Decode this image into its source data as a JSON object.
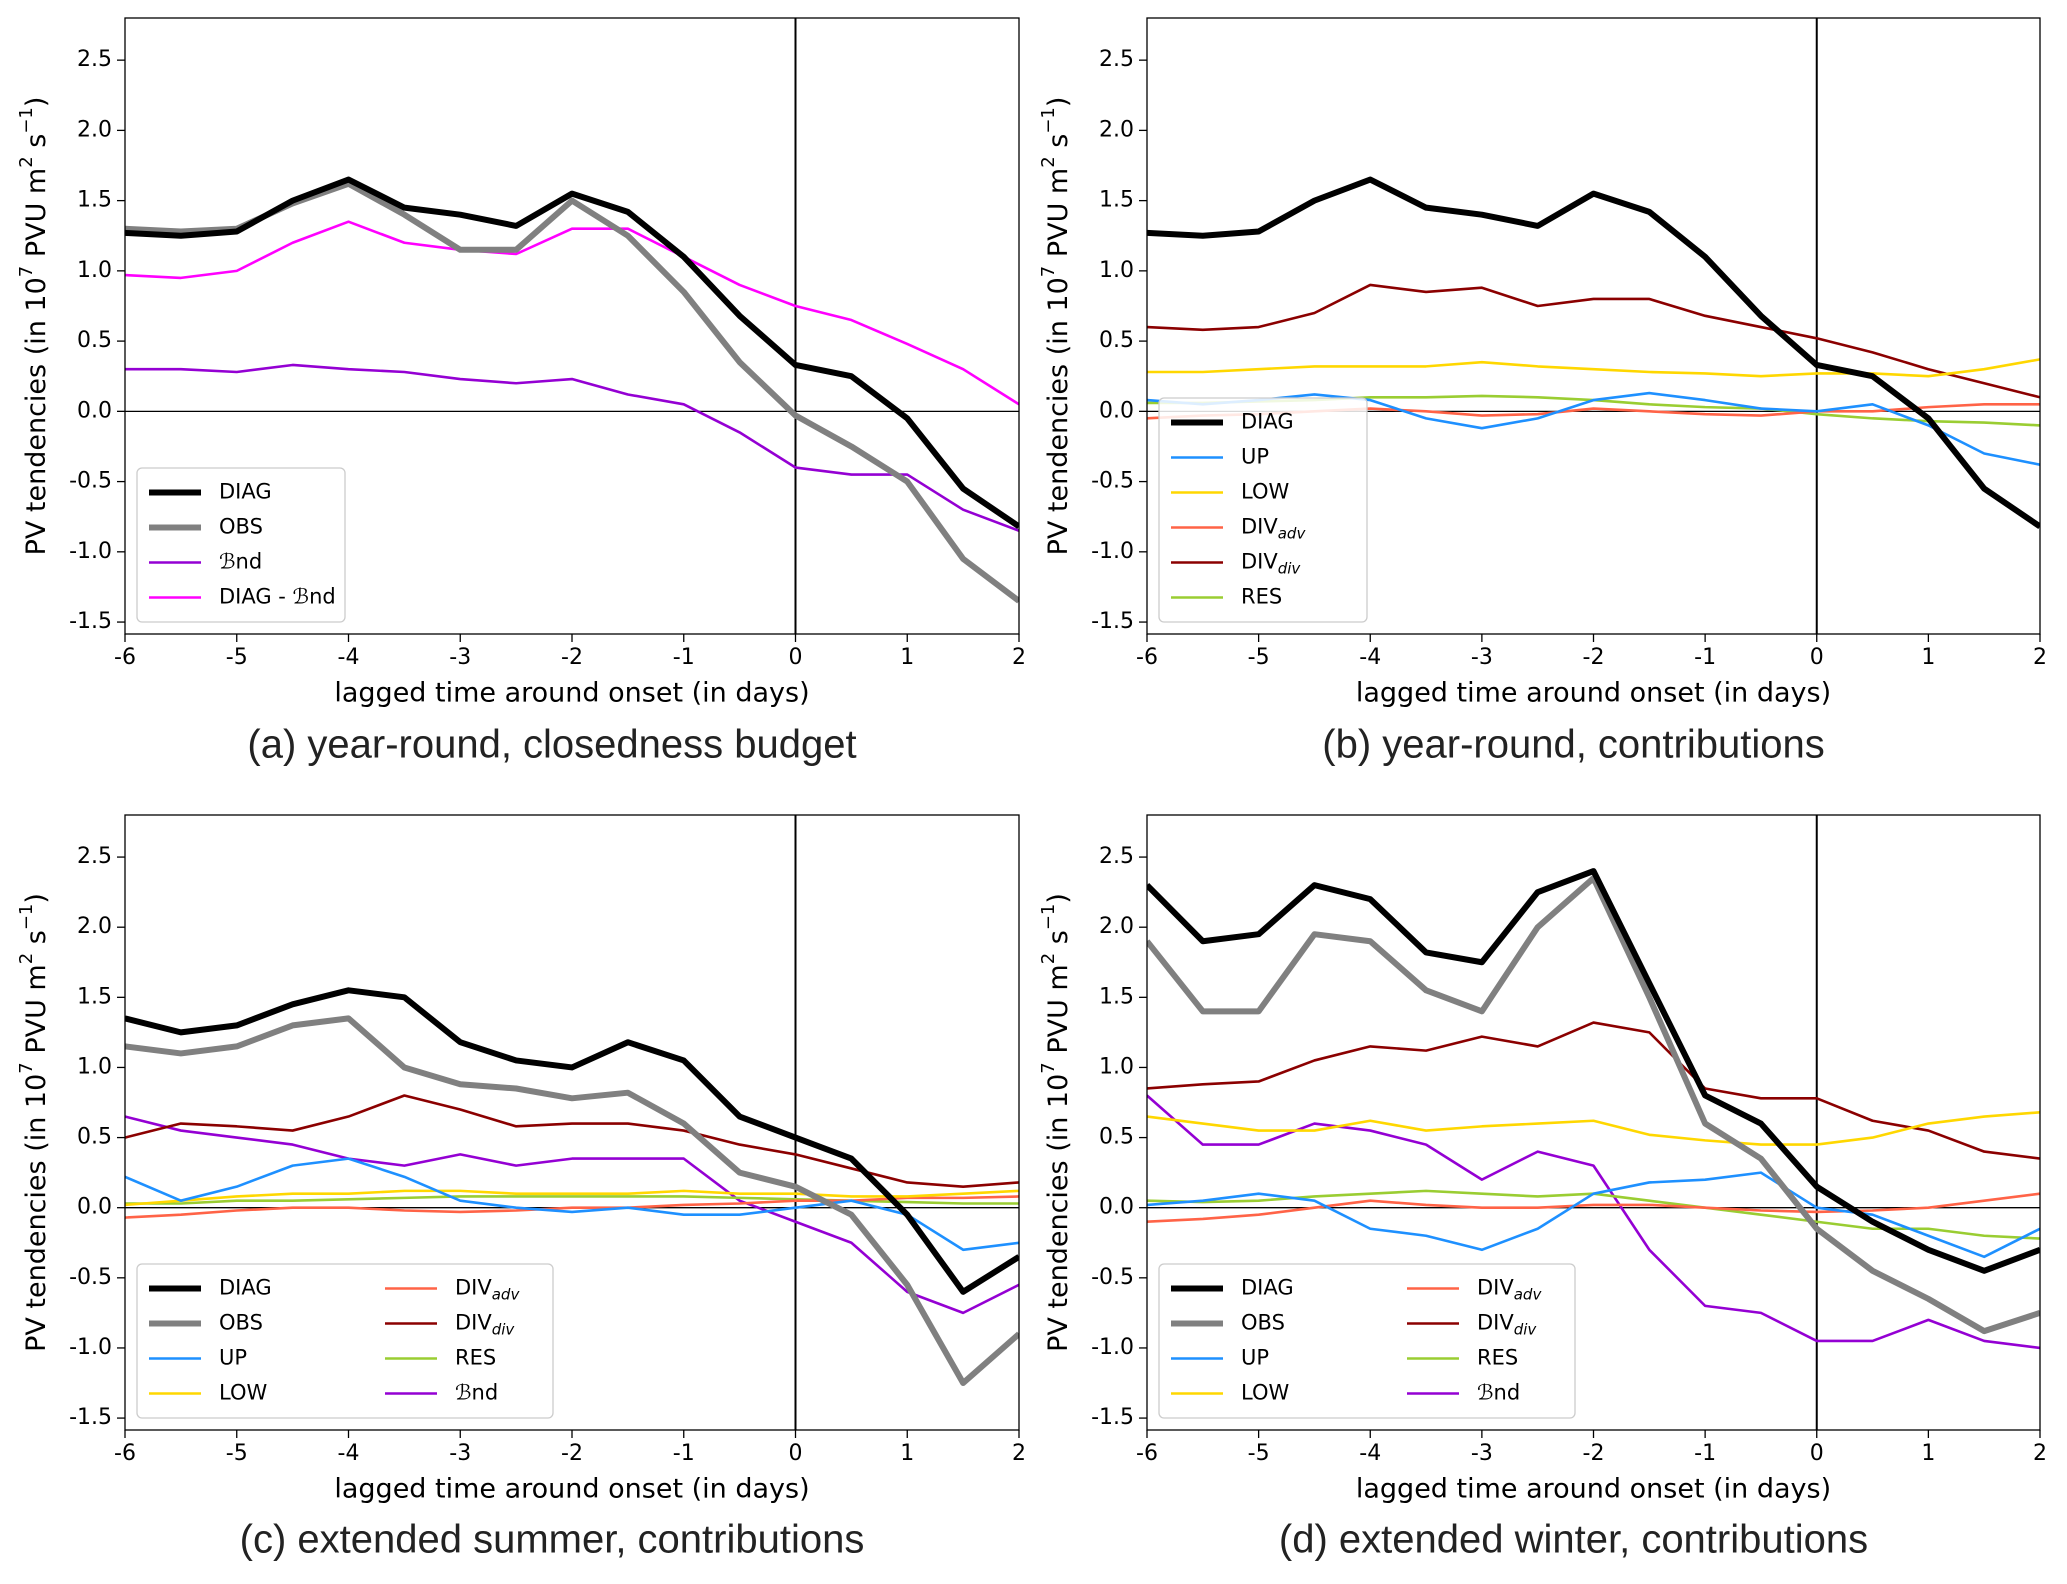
{
  "chart_data": [
    {
      "type": "line",
      "title": "(a) year-round, closedness budget",
      "xlabel": "lagged time around onset (in days)",
      "ylabel": [
        {
          "text": "PV tendencies (in 10"
        },
        {
          "text": "7",
          "sup": true
        },
        {
          "text": " PVU m"
        },
        {
          "text": "2",
          "sup": true
        },
        {
          "text": " s"
        },
        {
          "text": "−1",
          "sup": true
        },
        {
          "text": ")"
        }
      ],
      "xlim": [
        -6,
        2
      ],
      "ylim": [
        -1.585,
        2.8
      ],
      "xticks": [
        -6,
        -5,
        -4,
        -3,
        -2,
        -1,
        0,
        1,
        2
      ],
      "yticks": [
        -1.5,
        {
          "value": -1,
          "label": "-1.0"
        },
        -0.5,
        {
          "value": 0,
          "label": "0.0"
        },
        0.5,
        {
          "value": 1,
          "label": "1.0"
        },
        1.5,
        {
          "value": 2,
          "label": "2.0"
        },
        2.5
      ],
      "reference_lines": {
        "x": 0,
        "y": 0
      },
      "legend": {
        "loc": "lower left",
        "ncol": 1
      },
      "x": [
        -6,
        -5.5,
        -5,
        -4.5,
        -4,
        -3.5,
        -3,
        -2.5,
        -2,
        -1.5,
        -1,
        -0.5,
        0,
        0.5,
        1,
        1.5,
        2
      ],
      "series": [
        {
          "name": "DIAG",
          "color": "#000000",
          "linewidth": 6,
          "values": [
            1.27,
            1.25,
            1.28,
            1.5,
            1.65,
            1.45,
            1.4,
            1.32,
            1.55,
            1.42,
            1.1,
            0.68,
            0.33,
            0.25,
            -0.05,
            -0.55,
            -0.82
          ]
        },
        {
          "name": "OBS",
          "color": "#808080",
          "linewidth": 6,
          "values": [
            1.3,
            1.28,
            1.3,
            1.48,
            1.62,
            1.4,
            1.15,
            1.15,
            1.5,
            1.25,
            0.85,
            0.35,
            -0.03,
            -0.25,
            -0.5,
            -1.05,
            -1.35
          ]
        },
        {
          "name": "ℬnd",
          "color": "#9400d3",
          "linewidth": 2.6,
          "values": [
            0.3,
            0.3,
            0.28,
            0.33,
            0.3,
            0.28,
            0.23,
            0.2,
            0.23,
            0.12,
            0.05,
            -0.15,
            -0.4,
            -0.45,
            -0.45,
            -0.7,
            -0.85
          ]
        },
        {
          "name": "DIAG - ℬnd",
          "color": "#ff00ff",
          "linewidth": 2.6,
          "values": [
            0.97,
            0.95,
            1.0,
            1.2,
            1.35,
            1.2,
            1.15,
            1.12,
            1.3,
            1.3,
            1.1,
            0.9,
            0.75,
            0.65,
            0.48,
            0.3,
            0.05
          ]
        }
      ]
    },
    {
      "type": "line",
      "title": "(b) year-round, contributions",
      "xlabel": "lagged time around onset (in days)",
      "ylabel": [
        {
          "text": "PV tendencies (in 10"
        },
        {
          "text": "7",
          "sup": true
        },
        {
          "text": " PVU m"
        },
        {
          "text": "2",
          "sup": true
        },
        {
          "text": " s"
        },
        {
          "text": "−1",
          "sup": true
        },
        {
          "text": ")"
        }
      ],
      "xlim": [
        -6,
        2
      ],
      "ylim": [
        -1.585,
        2.8
      ],
      "xticks": [
        -6,
        -5,
        -4,
        -3,
        -2,
        -1,
        0,
        1,
        2
      ],
      "yticks": [
        -1.5,
        {
          "value": -1,
          "label": "-1.0"
        },
        -0.5,
        {
          "value": 0,
          "label": "0.0"
        },
        0.5,
        {
          "value": 1,
          "label": "1.0"
        },
        1.5,
        {
          "value": 2,
          "label": "2.0"
        },
        2.5
      ],
      "reference_lines": {
        "x": 0,
        "y": 0
      },
      "legend": {
        "loc": "lower left",
        "ncol": 1
      },
      "x": [
        -6,
        -5.5,
        -5,
        -4.5,
        -4,
        -3.5,
        -3,
        -2.5,
        -2,
        -1.5,
        -1,
        -0.5,
        0,
        0.5,
        1,
        1.5,
        2
      ],
      "series": [
        {
          "name": "DIAG",
          "color": "#000000",
          "linewidth": 6,
          "values": [
            1.27,
            1.25,
            1.28,
            1.5,
            1.65,
            1.45,
            1.4,
            1.32,
            1.55,
            1.42,
            1.1,
            0.68,
            0.33,
            0.25,
            -0.05,
            -0.55,
            -0.82
          ]
        },
        {
          "name": "UP",
          "color": "#1e90ff",
          "linewidth": 2.6,
          "values": [
            0.08,
            0.05,
            0.08,
            0.12,
            0.08,
            -0.05,
            -0.12,
            -0.05,
            0.08,
            0.13,
            0.08,
            0.02,
            0.0,
            0.05,
            -0.1,
            -0.3,
            -0.38
          ]
        },
        {
          "name": "LOW",
          "color": "#ffd700",
          "linewidth": 2.6,
          "values": [
            0.28,
            0.28,
            0.3,
            0.32,
            0.32,
            0.32,
            0.35,
            0.32,
            0.3,
            0.28,
            0.27,
            0.25,
            0.27,
            0.27,
            0.25,
            0.3,
            0.37
          ]
        },
        {
          "name": "DIV",
          "subscript": "adv",
          "color": "#ff6347",
          "linewidth": 2.6,
          "values": [
            -0.05,
            -0.03,
            -0.02,
            0.0,
            0.02,
            0.0,
            -0.03,
            -0.02,
            0.02,
            0.0,
            -0.02,
            -0.03,
            0.0,
            0.0,
            0.03,
            0.05,
            0.05
          ]
        },
        {
          "name": "DIV",
          "subscript": "div",
          "color": "#8b0000",
          "linewidth": 2.6,
          "values": [
            0.6,
            0.58,
            0.6,
            0.7,
            0.9,
            0.85,
            0.88,
            0.75,
            0.8,
            0.8,
            0.68,
            0.6,
            0.52,
            0.42,
            0.3,
            0.2,
            0.1
          ]
        },
        {
          "name": "RES",
          "color": "#9acd32",
          "linewidth": 2.6,
          "values": [
            0.06,
            0.06,
            0.07,
            0.08,
            0.1,
            0.1,
            0.11,
            0.1,
            0.08,
            0.05,
            0.03,
            0.02,
            -0.02,
            -0.05,
            -0.07,
            -0.08,
            -0.1
          ]
        }
      ]
    },
    {
      "type": "line",
      "title": "(c) extended summer, contributions",
      "xlabel": "lagged time around onset (in days)",
      "ylabel": [
        {
          "text": "PV tendencies (in 10"
        },
        {
          "text": "7",
          "sup": true
        },
        {
          "text": " PVU m"
        },
        {
          "text": "2",
          "sup": true
        },
        {
          "text": " s"
        },
        {
          "text": "−1",
          "sup": true
        },
        {
          "text": ")"
        }
      ],
      "xlim": [
        -6,
        2
      ],
      "ylim": [
        -1.585,
        2.8
      ],
      "xticks": [
        -6,
        -5,
        -4,
        -3,
        -2,
        -1,
        0,
        1,
        2
      ],
      "yticks": [
        -1.5,
        {
          "value": -1,
          "label": "-1.0"
        },
        -0.5,
        {
          "value": 0,
          "label": "0.0"
        },
        0.5,
        {
          "value": 1,
          "label": "1.0"
        },
        1.5,
        {
          "value": 2,
          "label": "2.0"
        },
        2.5
      ],
      "reference_lines": {
        "x": 0,
        "y": 0
      },
      "legend": {
        "loc": "lower left",
        "ncol": 2
      },
      "x": [
        -6,
        -5.5,
        -5,
        -4.5,
        -4,
        -3.5,
        -3,
        -2.5,
        -2,
        -1.5,
        -1,
        -0.5,
        0,
        0.5,
        1,
        1.5,
        2
      ],
      "series": [
        {
          "name": "DIAG",
          "color": "#000000",
          "linewidth": 6,
          "values": [
            1.35,
            1.25,
            1.3,
            1.45,
            1.55,
            1.5,
            1.18,
            1.05,
            1.0,
            1.18,
            1.05,
            0.65,
            0.5,
            0.35,
            -0.05,
            -0.6,
            -0.35
          ]
        },
        {
          "name": "OBS",
          "color": "#808080",
          "linewidth": 6,
          "values": [
            1.15,
            1.1,
            1.15,
            1.3,
            1.35,
            1.0,
            0.88,
            0.85,
            0.78,
            0.82,
            0.6,
            0.25,
            0.15,
            -0.05,
            -0.55,
            -1.25,
            -0.9
          ]
        },
        {
          "name": "UP",
          "color": "#1e90ff",
          "linewidth": 2.6,
          "values": [
            0.22,
            0.05,
            0.15,
            0.3,
            0.35,
            0.22,
            0.05,
            0.0,
            -0.03,
            0.0,
            -0.05,
            -0.05,
            0.0,
            0.05,
            -0.05,
            -0.3,
            -0.25
          ]
        },
        {
          "name": "LOW",
          "color": "#ffd700",
          "linewidth": 2.6,
          "values": [
            0.02,
            0.05,
            0.08,
            0.1,
            0.1,
            0.12,
            0.12,
            0.1,
            0.1,
            0.1,
            0.12,
            0.1,
            0.1,
            0.08,
            0.08,
            0.1,
            0.12
          ]
        },
        {
          "name": "DIV",
          "subscript": "adv",
          "color": "#ff6347",
          "linewidth": 2.6,
          "values": [
            -0.07,
            -0.05,
            -0.02,
            0.0,
            0.0,
            -0.02,
            -0.03,
            -0.02,
            0.0,
            0.0,
            0.02,
            0.03,
            0.05,
            0.05,
            0.07,
            0.07,
            0.08
          ]
        },
        {
          "name": "DIV",
          "subscript": "div",
          "color": "#8b0000",
          "linewidth": 2.6,
          "values": [
            0.5,
            0.6,
            0.58,
            0.55,
            0.65,
            0.8,
            0.7,
            0.58,
            0.6,
            0.6,
            0.55,
            0.45,
            0.38,
            0.28,
            0.18,
            0.15,
            0.18
          ]
        },
        {
          "name": "RES",
          "color": "#9acd32",
          "linewidth": 2.6,
          "values": [
            0.03,
            0.03,
            0.05,
            0.05,
            0.06,
            0.07,
            0.08,
            0.08,
            0.08,
            0.08,
            0.08,
            0.07,
            0.06,
            0.05,
            0.04,
            0.03,
            0.03
          ]
        },
        {
          "name": "ℬnd",
          "color": "#9400d3",
          "linewidth": 2.6,
          "values": [
            0.65,
            0.55,
            0.5,
            0.45,
            0.35,
            0.3,
            0.38,
            0.3,
            0.35,
            0.35,
            0.35,
            0.05,
            -0.1,
            -0.25,
            -0.6,
            -0.75,
            -0.55
          ]
        }
      ]
    },
    {
      "type": "line",
      "title": "(d) extended winter, contributions",
      "xlabel": "lagged time around onset (in days)",
      "ylabel": [
        {
          "text": "PV tendencies (in 10"
        },
        {
          "text": "7",
          "sup": true
        },
        {
          "text": " PVU m"
        },
        {
          "text": "2",
          "sup": true
        },
        {
          "text": " s"
        },
        {
          "text": "−1",
          "sup": true
        },
        {
          "text": ")"
        }
      ],
      "xlim": [
        -6,
        2
      ],
      "ylim": [
        -1.585,
        2.8
      ],
      "xticks": [
        -6,
        -5,
        -4,
        -3,
        -2,
        -1,
        0,
        1,
        2
      ],
      "yticks": [
        -1.5,
        {
          "value": -1,
          "label": "-1.0"
        },
        -0.5,
        {
          "value": 0,
          "label": "0.0"
        },
        0.5,
        {
          "value": 1,
          "label": "1.0"
        },
        1.5,
        {
          "value": 2,
          "label": "2.0"
        },
        2.5
      ],
      "reference_lines": {
        "x": 0,
        "y": 0
      },
      "legend": {
        "loc": "lower left",
        "ncol": 2
      },
      "x": [
        -6,
        -5.5,
        -5,
        -4.5,
        -4,
        -3.5,
        -3,
        -2.5,
        -2,
        -1.5,
        -1,
        -0.5,
        0,
        0.5,
        1,
        1.5,
        2
      ],
      "series": [
        {
          "name": "DIAG",
          "color": "#000000",
          "linewidth": 6,
          "values": [
            2.3,
            1.9,
            1.95,
            2.3,
            2.2,
            1.82,
            1.75,
            2.25,
            2.4,
            1.6,
            0.8,
            0.6,
            0.15,
            -0.1,
            -0.3,
            -0.45,
            -0.3
          ]
        },
        {
          "name": "OBS",
          "color": "#808080",
          "linewidth": 6,
          "values": [
            1.9,
            1.4,
            1.4,
            1.95,
            1.9,
            1.55,
            1.4,
            2.0,
            2.35,
            1.5,
            0.6,
            0.35,
            -0.15,
            -0.45,
            -0.65,
            -0.88,
            -0.75
          ]
        },
        {
          "name": "UP",
          "color": "#1e90ff",
          "linewidth": 2.6,
          "values": [
            0.02,
            0.05,
            0.1,
            0.05,
            -0.15,
            -0.2,
            -0.3,
            -0.15,
            0.1,
            0.18,
            0.2,
            0.25,
            0.0,
            -0.05,
            -0.2,
            -0.35,
            -0.15
          ]
        },
        {
          "name": "LOW",
          "color": "#ffd700",
          "linewidth": 2.6,
          "values": [
            0.65,
            0.6,
            0.55,
            0.55,
            0.62,
            0.55,
            0.58,
            0.6,
            0.62,
            0.52,
            0.48,
            0.45,
            0.45,
            0.5,
            0.6,
            0.65,
            0.68
          ]
        },
        {
          "name": "DIV",
          "subscript": "adv",
          "color": "#ff6347",
          "linewidth": 2.6,
          "values": [
            -0.1,
            -0.08,
            -0.05,
            0.0,
            0.05,
            0.02,
            0.0,
            0.0,
            0.02,
            0.02,
            0.0,
            -0.02,
            -0.03,
            -0.02,
            0.0,
            0.05,
            0.1
          ]
        },
        {
          "name": "DIV",
          "subscript": "div",
          "color": "#8b0000",
          "linewidth": 2.6,
          "values": [
            0.85,
            0.88,
            0.9,
            1.05,
            1.15,
            1.12,
            1.22,
            1.15,
            1.32,
            1.25,
            0.85,
            0.78,
            0.78,
            0.62,
            0.55,
            0.4,
            0.35
          ]
        },
        {
          "name": "RES",
          "color": "#9acd32",
          "linewidth": 2.6,
          "values": [
            0.05,
            0.04,
            0.05,
            0.08,
            0.1,
            0.12,
            0.1,
            0.08,
            0.1,
            0.05,
            0.0,
            -0.05,
            -0.1,
            -0.15,
            -0.15,
            -0.2,
            -0.22
          ]
        },
        {
          "name": "ℬnd",
          "color": "#9400d3",
          "linewidth": 2.6,
          "values": [
            0.8,
            0.45,
            0.45,
            0.6,
            0.55,
            0.45,
            0.2,
            0.4,
            0.3,
            -0.3,
            -0.7,
            -0.75,
            -0.95,
            -0.95,
            -0.8,
            -0.95,
            -1.0
          ]
        }
      ]
    }
  ]
}
